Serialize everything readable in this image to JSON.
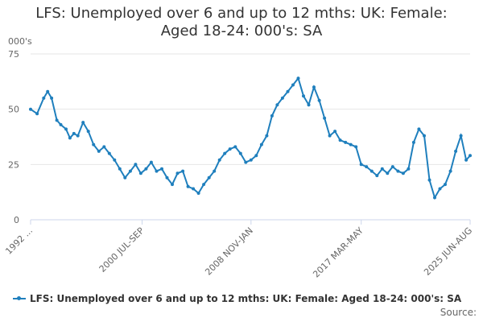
{
  "page": {
    "title_line1": "LFS: Unemployed over 6 and up to 12 mths: UK: Female:",
    "title_line2": "Aged 18-24: 000's: SA",
    "units": "000's",
    "source": "Source:"
  },
  "colors": {
    "series": "#1f7fbd",
    "grid": "#e6e6e6",
    "axis": "#ccd6eb"
  },
  "chart_data": {
    "type": "line",
    "title": "LFS: Unemployed over 6 and up to 12 mths: UK: Female: Aged 18-24: 000's: SA",
    "ylabel": "000's",
    "ylim": [
      0,
      75
    ],
    "yticks": [
      0,
      25,
      50,
      75
    ],
    "xlim": [
      1992.0,
      2025.5
    ],
    "xticks": [
      {
        "x": 1992.0,
        "label": "1992 ..."
      },
      {
        "x": 2000.5,
        "label": "2000 JUL-SEP"
      },
      {
        "x": 2008.8,
        "label": "2008 NOV-JAN"
      },
      {
        "x": 2017.2,
        "label": "2017 MAR-MAY"
      },
      {
        "x": 2025.5,
        "label": "2025 JUN-AUG"
      }
    ],
    "grid": true,
    "legend": "bottom",
    "series": [
      {
        "name": "LFS: Unemployed over 6 and up to 12 mths: UK: Female: Aged 18-24: 000's: SA",
        "x": [
          1992.0,
          1992.5,
          1993.0,
          1993.3,
          1993.6,
          1994.0,
          1994.3,
          1994.7,
          1995.0,
          1995.3,
          1995.6,
          1996.0,
          1996.4,
          1996.8,
          1997.2,
          1997.6,
          1998.0,
          1998.4,
          1998.8,
          1999.2,
          1999.6,
          2000.0,
          2000.4,
          2000.8,
          2001.2,
          2001.6,
          2002.0,
          2002.4,
          2002.8,
          2003.2,
          2003.6,
          2004.0,
          2004.4,
          2004.8,
          2005.2,
          2005.6,
          2006.0,
          2006.4,
          2006.8,
          2007.2,
          2007.6,
          2008.0,
          2008.4,
          2008.8,
          2009.2,
          2009.6,
          2010.0,
          2010.4,
          2010.8,
          2011.2,
          2011.6,
          2012.0,
          2012.4,
          2012.8,
          2013.2,
          2013.6,
          2014.0,
          2014.4,
          2014.8,
          2015.2,
          2015.6,
          2016.0,
          2016.4,
          2016.8,
          2017.2,
          2017.6,
          2018.0,
          2018.4,
          2018.8,
          2019.2,
          2019.6,
          2020.0,
          2020.4,
          2020.8,
          2021.2,
          2021.6,
          2022.0,
          2022.4,
          2022.8,
          2023.2,
          2023.6,
          2024.0,
          2024.4,
          2024.8,
          2025.2,
          2025.5
        ],
        "values": [
          50,
          48,
          55,
          58,
          55,
          45,
          43,
          41,
          37,
          39,
          38,
          44,
          40,
          34,
          31,
          33,
          30,
          27,
          23,
          19,
          22,
          25,
          21,
          23,
          26,
          22,
          23,
          19,
          16,
          21,
          22,
          15,
          14,
          12,
          16,
          19,
          22,
          27,
          30,
          32,
          33,
          30,
          26,
          27,
          29,
          34,
          38,
          47,
          52,
          55,
          58,
          61,
          64,
          56,
          52,
          60,
          54,
          46,
          38,
          40,
          36,
          35,
          34,
          33,
          25,
          24,
          22,
          20,
          23,
          21,
          24,
          22,
          21,
          23,
          35,
          41,
          38,
          18,
          10,
          14,
          16,
          22,
          31,
          38,
          27,
          29
        ]
      }
    ]
  }
}
